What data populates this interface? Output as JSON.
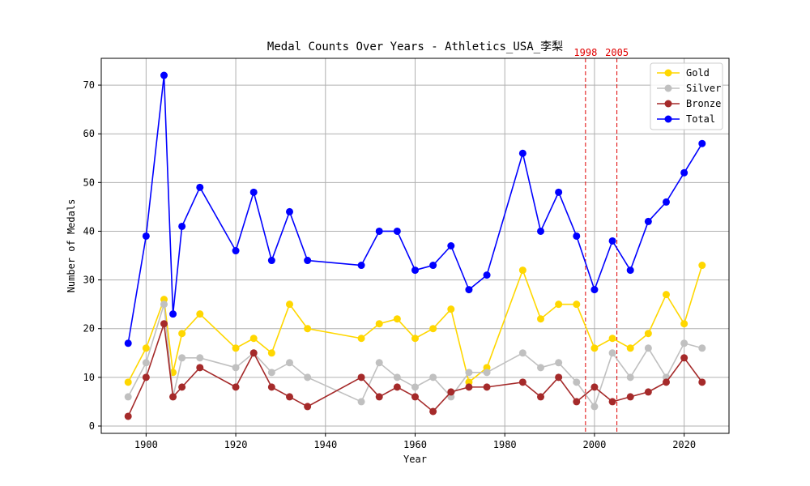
{
  "chart_data": {
    "type": "line",
    "title": "Medal Counts Over Years - Athletics_USA_李梨",
    "xlabel": "Year",
    "ylabel": "Number of Medals",
    "xlim": [
      1890,
      2030
    ],
    "ylim": [
      -1.5,
      75.5
    ],
    "xticks": [
      1900,
      1920,
      1940,
      1960,
      1980,
      2000,
      2020
    ],
    "yticks": [
      0,
      10,
      20,
      30,
      40,
      50,
      60,
      70
    ],
    "grid": true,
    "legend_position": "top-right",
    "x": [
      1896,
      1900,
      1904,
      1906,
      1908,
      1912,
      1920,
      1924,
      1928,
      1932,
      1936,
      1948,
      1952,
      1956,
      1960,
      1964,
      1968,
      1972,
      1976,
      1984,
      1988,
      1992,
      1996,
      2000,
      2004,
      2008,
      2012,
      2016,
      2020,
      2024
    ],
    "series": [
      {
        "name": "Gold",
        "color": "#ffd700",
        "values": [
          9,
          16,
          26,
          11,
          19,
          23,
          16,
          18,
          15,
          25,
          20,
          18,
          21,
          22,
          18,
          20,
          24,
          9,
          12,
          32,
          22,
          25,
          25,
          16,
          18,
          16,
          19,
          27,
          21,
          33
        ]
      },
      {
        "name": "Silver",
        "color": "#c0c0c0",
        "values": [
          6,
          13,
          25,
          6,
          14,
          14,
          12,
          15,
          11,
          13,
          10,
          5,
          13,
          10,
          8,
          10,
          6,
          11,
          11,
          15,
          12,
          13,
          9,
          4,
          15,
          10,
          16,
          10,
          17,
          16
        ]
      },
      {
        "name": "Bronze",
        "color": "#a52a2a",
        "values": [
          2,
          10,
          21,
          6,
          8,
          12,
          8,
          15,
          8,
          6,
          4,
          10,
          6,
          8,
          6,
          3,
          7,
          8,
          8,
          9,
          6,
          10,
          5,
          8,
          5,
          6,
          7,
          9,
          14,
          9
        ]
      },
      {
        "name": "Total",
        "color": "#0000ff",
        "values": [
          17,
          39,
          72,
          23,
          41,
          49,
          36,
          48,
          34,
          44,
          34,
          33,
          40,
          40,
          32,
          33,
          37,
          28,
          31,
          56,
          40,
          48,
          39,
          28,
          38,
          32,
          42,
          46,
          52,
          58
        ]
      }
    ],
    "vlines": [
      {
        "x": 1998,
        "label": "1998",
        "color": "#e00000"
      },
      {
        "x": 2005,
        "label": "2005",
        "color": "#e00000"
      }
    ]
  }
}
